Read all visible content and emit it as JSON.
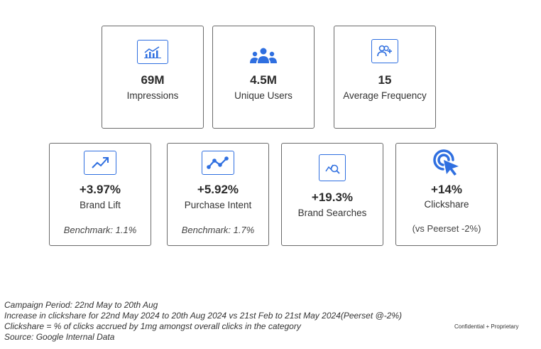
{
  "metrics_top": [
    {
      "icon": "bar-chart-icon",
      "value": "69M",
      "label": "Impressions"
    },
    {
      "icon": "users-group-icon",
      "value": "4.5M",
      "label": "Unique Users"
    },
    {
      "icon": "person-add-icon",
      "value": "15",
      "label": "Average Frequency"
    }
  ],
  "metrics_bottom": [
    {
      "icon": "trend-up-icon",
      "value": "+3.97%",
      "label": "Brand Lift",
      "note": "Benchmark: 1.1%"
    },
    {
      "icon": "line-chart-icon",
      "value": "+5.92%",
      "label": "Purchase Intent",
      "note": "Benchmark: 1.7%"
    },
    {
      "icon": "search-analytics-icon",
      "value": "+19.3%",
      "label": "Brand Searches",
      "note": ""
    },
    {
      "icon": "click-cursor-icon",
      "value": "+14%",
      "label": "Clickshare",
      "note": "(vs Peerset -2%)"
    }
  ],
  "footer": {
    "lines": [
      "Campaign Period: 22nd May to 20th Aug",
      "Increase in clickshare for 22nd May 2024 to 20th Aug 2024 vs 21st Feb to 21st May 2024(Peerset @-2%)",
      "Clickshare  = % of clicks accrued by 1mg amongst overall clicks in the category",
      "Source: Google Internal Data"
    ],
    "confidential": "Confidential + Proprietary"
  },
  "colors": {
    "accent": "#2f6fe0",
    "border": "#6b6b6b"
  }
}
